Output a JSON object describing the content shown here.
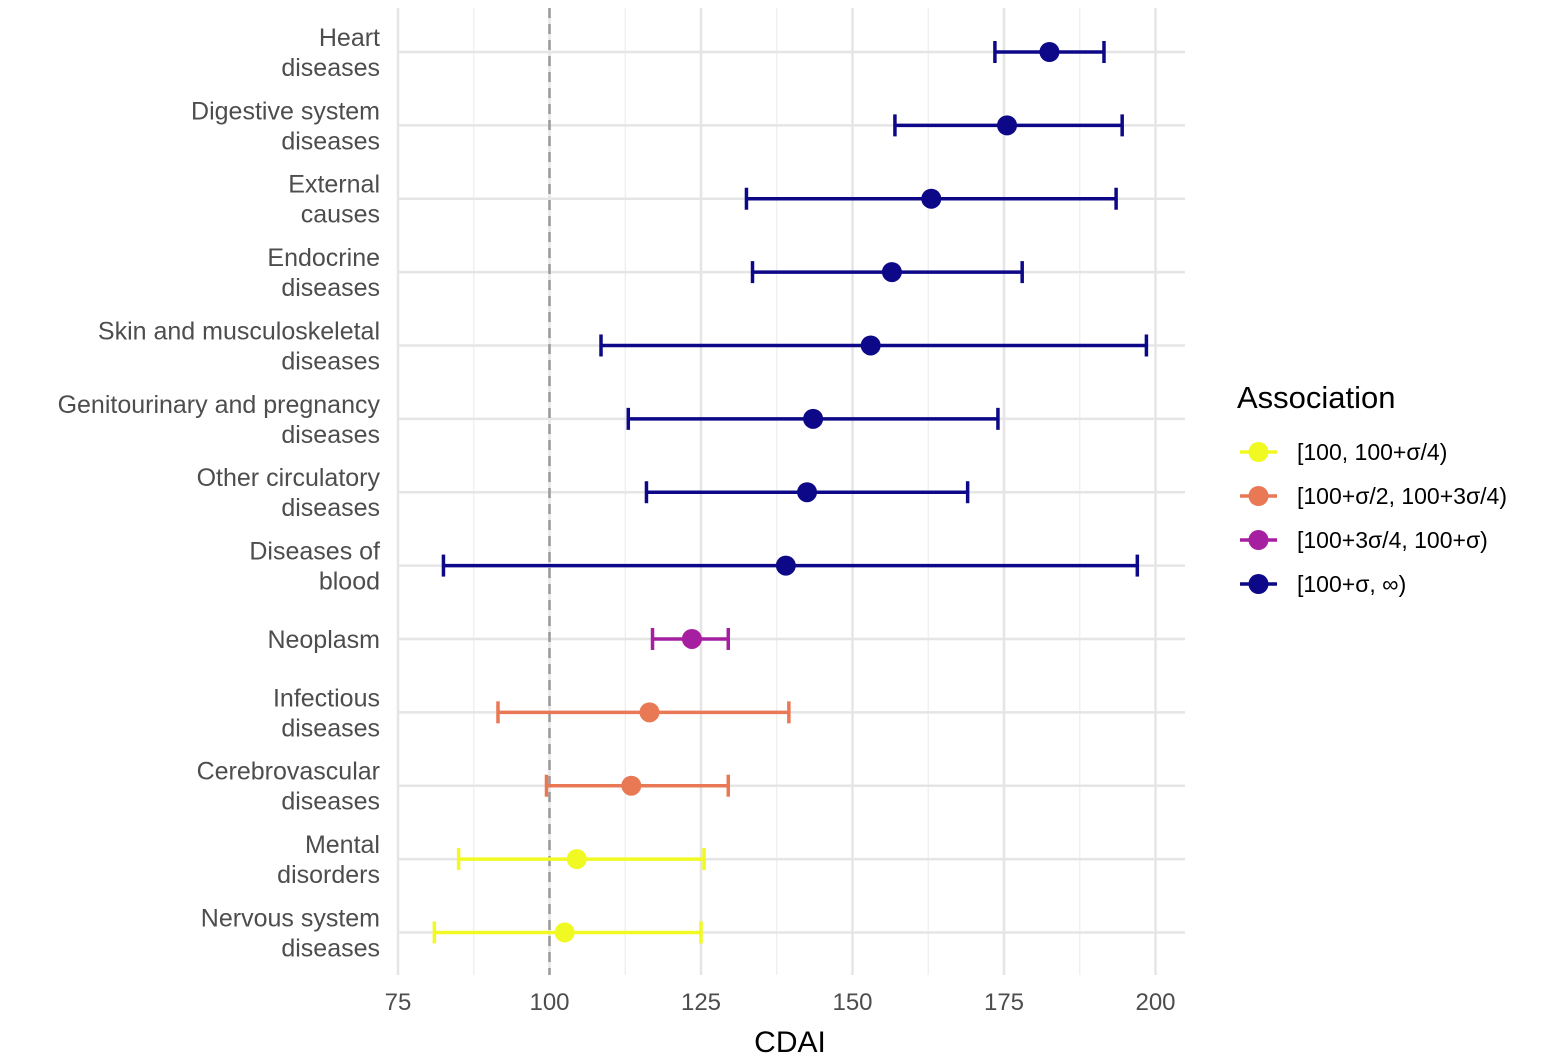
{
  "chart_data": {
    "type": "forest",
    "xlabel": "CDAI",
    "xlim": [
      75,
      205
    ],
    "xticks": [
      75,
      100,
      125,
      150,
      175,
      200
    ],
    "reference_line": 100,
    "legend": {
      "title": "Association",
      "placement": "right",
      "entries": [
        {
          "key": "q1",
          "label": "[100, 100+σ/4)",
          "color": "#f0f921"
        },
        {
          "key": "q2",
          "label": "[100+σ/2, 100+3σ/4)",
          "color": "#e97854"
        },
        {
          "key": "q3",
          "label": "[100+3σ/4, 100+σ)",
          "color": "#a51fa0"
        },
        {
          "key": "q4",
          "label": "[100+σ, ∞)",
          "color": "#0d0887"
        }
      ]
    },
    "rows": [
      {
        "label": [
          "Heart",
          "diseases"
        ],
        "estimate": 182.5,
        "lower": 173.5,
        "upper": 191.5,
        "group": "q4"
      },
      {
        "label": [
          "Digestive system",
          "diseases"
        ],
        "estimate": 175.5,
        "lower": 157,
        "upper": 194.5,
        "group": "q4"
      },
      {
        "label": [
          "External",
          "causes"
        ],
        "estimate": 163,
        "lower": 132.5,
        "upper": 193.5,
        "group": "q4"
      },
      {
        "label": [
          "Endocrine",
          "diseases"
        ],
        "estimate": 156.5,
        "lower": 133.5,
        "upper": 178,
        "group": "q4"
      },
      {
        "label": [
          "Skin and musculoskeletal",
          "diseases"
        ],
        "estimate": 153,
        "lower": 108.5,
        "upper": 198.5,
        "group": "q4"
      },
      {
        "label": [
          "Genitourinary and pregnancy",
          "diseases"
        ],
        "estimate": 143.5,
        "lower": 113,
        "upper": 174,
        "group": "q4"
      },
      {
        "label": [
          "Other circulatory",
          "diseases"
        ],
        "estimate": 142.5,
        "lower": 116,
        "upper": 169,
        "group": "q4"
      },
      {
        "label": [
          "Diseases of",
          "blood"
        ],
        "estimate": 139,
        "lower": 82.5,
        "upper": 197,
        "group": "q4"
      },
      {
        "label": [
          "Neoplasm"
        ],
        "estimate": 123.5,
        "lower": 117,
        "upper": 129.5,
        "group": "q3"
      },
      {
        "label": [
          "Infectious",
          "diseases"
        ],
        "estimate": 116.5,
        "lower": 91.5,
        "upper": 139.5,
        "group": "q2"
      },
      {
        "label": [
          "Cerebrovascular",
          "diseases"
        ],
        "estimate": 113.5,
        "lower": 99.5,
        "upper": 129.5,
        "group": "q2"
      },
      {
        "label": [
          "Mental",
          "disorders"
        ],
        "estimate": 104.5,
        "lower": 85,
        "upper": 125.5,
        "group": "q1"
      },
      {
        "label": [
          "Nervous system",
          "diseases"
        ],
        "estimate": 102.5,
        "lower": 81,
        "upper": 125,
        "group": "q1"
      }
    ]
  }
}
